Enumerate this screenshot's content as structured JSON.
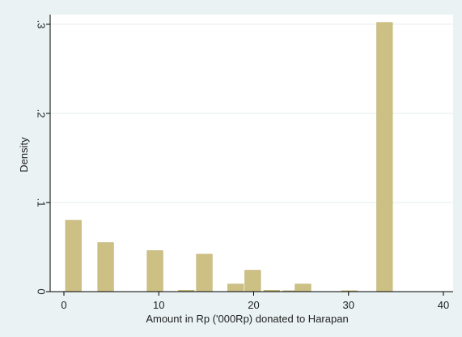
{
  "chart_data": {
    "type": "bar",
    "title": "",
    "xlabel": "Amount in Rp ('000Rp) donated to Harapan",
    "ylabel": "Density",
    "xlim": [
      0,
      40
    ],
    "ylim": [
      0,
      0.3
    ],
    "x_ticks": [
      {
        "value": 0,
        "label": "0"
      },
      {
        "value": 10,
        "label": "10"
      },
      {
        "value": 20,
        "label": "20"
      },
      {
        "value": 30,
        "label": "30"
      },
      {
        "value": 40,
        "label": "40"
      }
    ],
    "y_ticks": [
      {
        "value": 0,
        "label": "0"
      },
      {
        "value": 0.1,
        "label": ".1"
      },
      {
        "value": 0.2,
        "label": ".2"
      },
      {
        "value": 0.3,
        "label": ".3"
      }
    ],
    "grid": true,
    "bin_width": 1.66,
    "bars": [
      {
        "x": 1.0,
        "density": 0.08
      },
      {
        "x": 4.4,
        "density": 0.055
      },
      {
        "x": 9.6,
        "density": 0.046
      },
      {
        "x": 12.9,
        "density": 0.0015
      },
      {
        "x": 14.8,
        "density": 0.042
      },
      {
        "x": 18.1,
        "density": 0.0085
      },
      {
        "x": 19.9,
        "density": 0.024
      },
      {
        "x": 21.9,
        "density": 0.0015
      },
      {
        "x": 23.9,
        "density": 0.001
      },
      {
        "x": 25.2,
        "density": 0.0085
      },
      {
        "x": 30.1,
        "density": 0.001
      },
      {
        "x": 33.8,
        "density": 0.302
      }
    ],
    "colors": {
      "bar_fill": "#cdc084",
      "bar_stroke": "#b8a963",
      "plot_background": "#ffffff",
      "outer_background": "#eaf2f3",
      "grid": "#e6eeee",
      "axis": "#000000"
    }
  }
}
